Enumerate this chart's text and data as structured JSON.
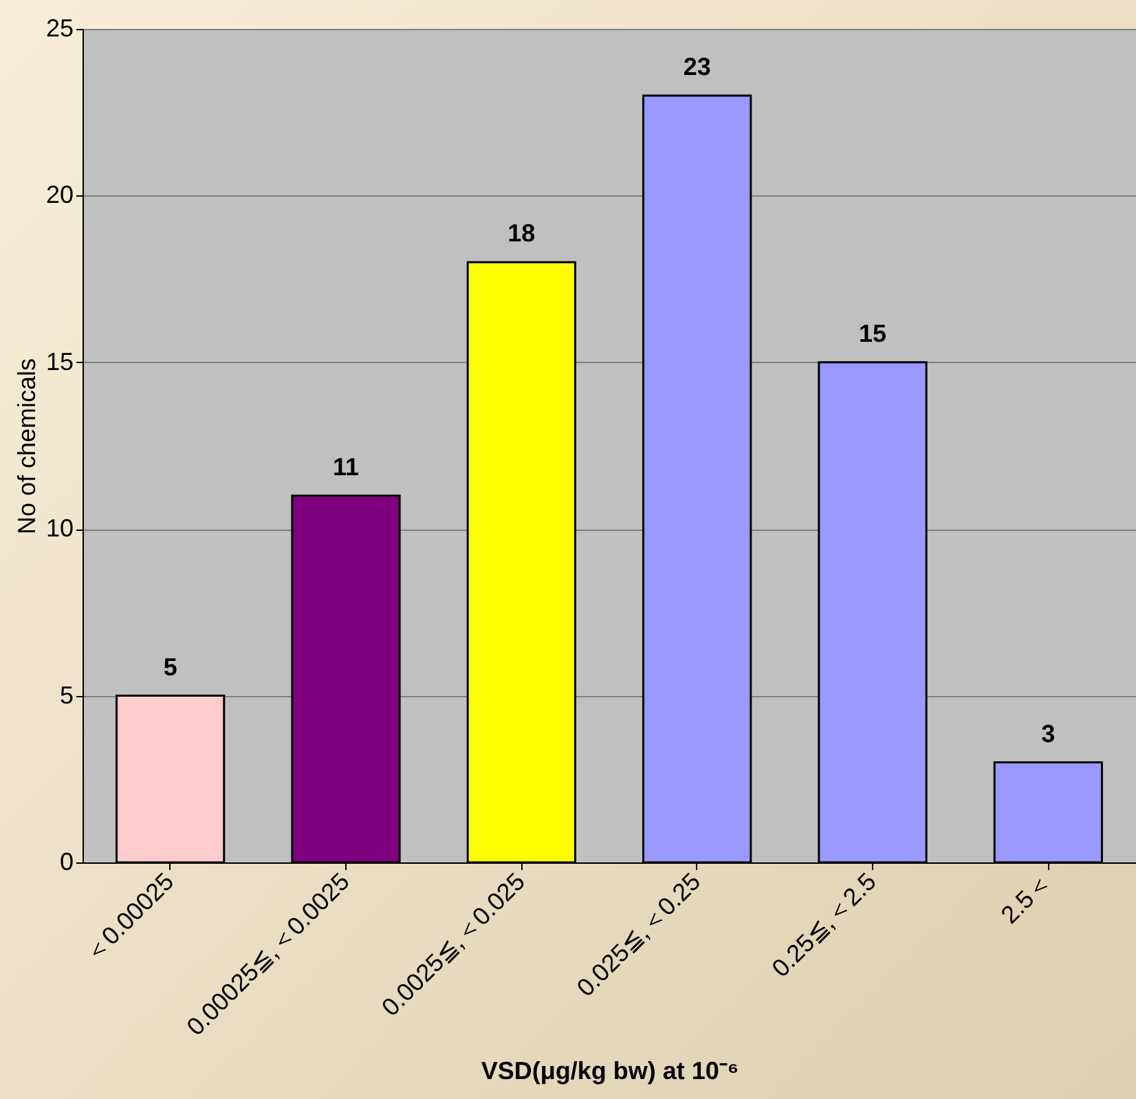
{
  "chart_data": {
    "type": "bar",
    "xlabel": "VSD(μg/kg bw) at 10⁻⁶",
    "ylabel": "No of chemicals",
    "categories": [
      "＜0.00025",
      "0.00025≦,＜0.0025",
      "0.0025≦,＜0.025",
      "0.025≦,＜0.25",
      "0.25≦,＜2.5",
      "2.5＜"
    ],
    "values": [
      5,
      11,
      18,
      23,
      15,
      3
    ],
    "colors": [
      "#ffcccc",
      "#800080",
      "#ffff00",
      "#9999ff",
      "#9999ff",
      "#9999ff"
    ],
    "ylim": [
      0,
      25
    ],
    "yticks": [
      0,
      5,
      10,
      15,
      20,
      25
    ],
    "grid": "y",
    "data_labels": true
  }
}
